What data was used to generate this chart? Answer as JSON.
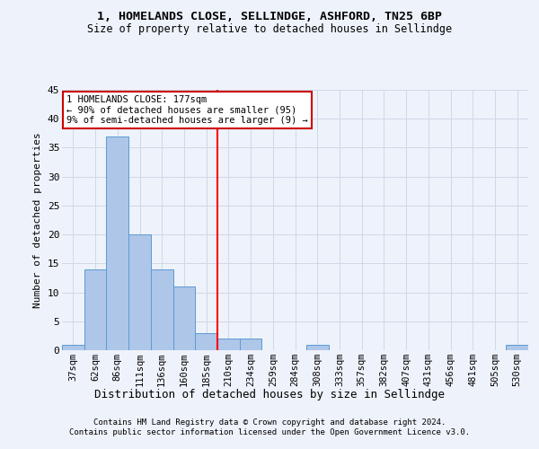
{
  "title1": "1, HOMELANDS CLOSE, SELLINDGE, ASHFORD, TN25 6BP",
  "title2": "Size of property relative to detached houses in Sellindge",
  "xlabel": "Distribution of detached houses by size in Sellindge",
  "ylabel": "Number of detached properties",
  "footer1": "Contains HM Land Registry data © Crown copyright and database right 2024.",
  "footer2": "Contains public sector information licensed under the Open Government Licence v3.0.",
  "bar_labels": [
    "37sqm",
    "62sqm",
    "86sqm",
    "111sqm",
    "136sqm",
    "160sqm",
    "185sqm",
    "210sqm",
    "234sqm",
    "259sqm",
    "284sqm",
    "308sqm",
    "333sqm",
    "357sqm",
    "382sqm",
    "407sqm",
    "431sqm",
    "456sqm",
    "481sqm",
    "505sqm",
    "530sqm"
  ],
  "bar_values": [
    1,
    14,
    37,
    20,
    14,
    11,
    3,
    2,
    2,
    0,
    0,
    1,
    0,
    0,
    0,
    0,
    0,
    0,
    0,
    0,
    1
  ],
  "bar_color": "#aec6e8",
  "bar_edge_color": "#5b9bd5",
  "grid_color": "#d0d8e8",
  "background_color": "#eef2fa",
  "red_line_x": 6.5,
  "annotation_line1": "1 HOMELANDS CLOSE: 177sqm",
  "annotation_line2": "← 90% of detached houses are smaller (95)",
  "annotation_line3": "9% of semi-detached houses are larger (9) →",
  "annotation_box_color": "#ffffff",
  "annotation_box_edge_color": "#cc0000",
  "ylim": [
    0,
    45
  ],
  "yticks": [
    0,
    5,
    10,
    15,
    20,
    25,
    30,
    35,
    40,
    45
  ]
}
